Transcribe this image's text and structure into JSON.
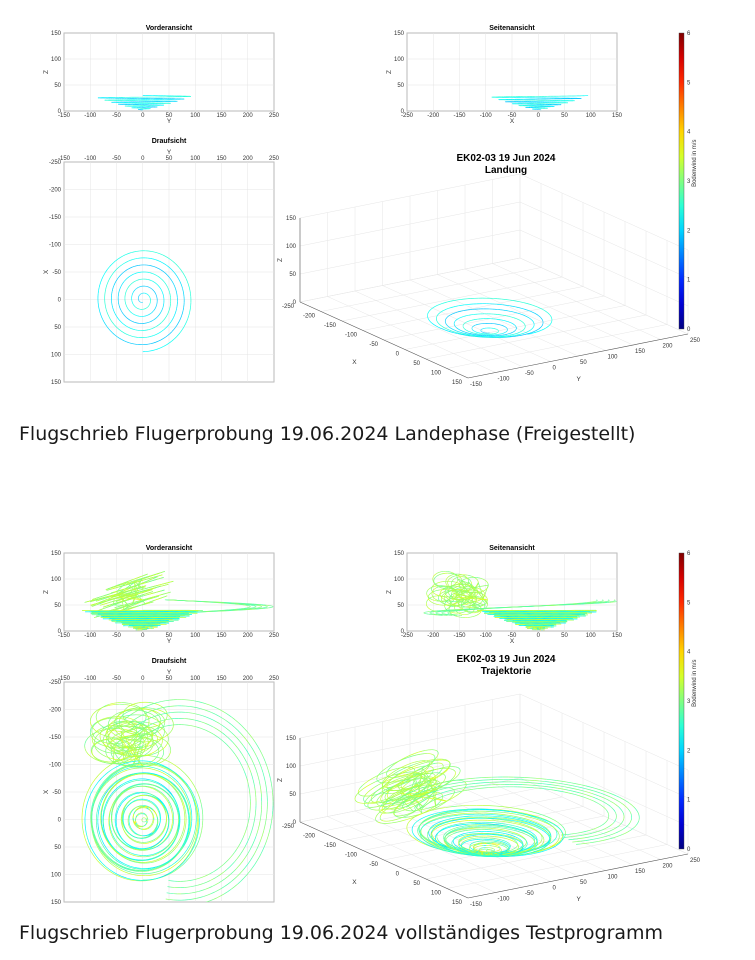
{
  "figures": [
    {
      "id": "landing",
      "caption": "Flugschrieb Flugerprobung 19.06.2024 Landephase (Freigestellt)",
      "panels": {
        "front_title": "Vorderansicht",
        "side_title": "Seitenansicht",
        "top_title": "Draufsicht",
        "main_title_1": "EK02-03 19 Jun 2024",
        "main_title_2": "Landung"
      },
      "colorbar_label": "Bodenwind in m/s"
    },
    {
      "id": "full",
      "caption": "Flugschrieb Flugerprobung 19.06.2024 vollständiges Testprogramm",
      "panels": {
        "front_title": "Vorderansicht",
        "side_title": "Seitenansicht",
        "top_title": "Draufsicht",
        "main_title_1": "EK02-03 19 Jun 2024",
        "main_title_2": "Trajektorie"
      },
      "colorbar_label": "Bodenwind in m/s"
    }
  ],
  "chart_data": [
    {
      "type": "line",
      "subtype": "3d-trajectory-with-projections",
      "title": "EK02-03 19 Jun 2024",
      "subtitle": "Landung",
      "front_view": {
        "xlabel": "Y",
        "ylabel": "Z",
        "xlim": [
          -150,
          250
        ],
        "ylim": [
          0,
          150
        ],
        "xticks": [
          -150,
          -100,
          -50,
          0,
          50,
          100,
          150,
          200,
          250
        ],
        "yticks": [
          0,
          50,
          100,
          150
        ]
      },
      "side_view": {
        "xlabel": "X",
        "ylabel": "Z",
        "xlim": [
          -250,
          150
        ],
        "ylim": [
          0,
          150
        ],
        "xticks": [
          -250,
          -200,
          -150,
          -100,
          -50,
          0,
          50,
          100,
          150
        ],
        "yticks": [
          0,
          50,
          100,
          150
        ]
      },
      "top_view": {
        "xlabel": "Y",
        "ylabel": "X",
        "xlim": [
          -150,
          250
        ],
        "ylim": [
          -250,
          150
        ],
        "xticks": [
          -150,
          -100,
          -50,
          0,
          50,
          100,
          150,
          200,
          250
        ],
        "yticks": [
          -250,
          -200,
          -150,
          -100,
          -50,
          0,
          50,
          100,
          150
        ]
      },
      "view_3d": {
        "xlabel": "X",
        "ylabel": "Y",
        "zlabel": "Z",
        "xticks": [
          -250,
          -200,
          -150,
          -100,
          -50,
          0,
          50,
          100,
          150
        ],
        "yticks": [
          -150,
          -100,
          -50,
          0,
          50,
          100,
          150,
          200,
          250
        ],
        "zticks": [
          0,
          50,
          100,
          150
        ]
      },
      "colorbar": {
        "label": "Bodenwind in m/s",
        "range": [
          0,
          6
        ],
        "ticks": [
          0,
          1,
          2,
          3,
          4,
          5,
          6
        ],
        "colormap": "jet"
      },
      "trajectory": {
        "shape": "descending spiral",
        "center": {
          "x": 0,
          "y": 0
        },
        "start": {
          "z": 30,
          "radius": 95
        },
        "end": {
          "z": 2,
          "radius": 5
        },
        "turns": 7,
        "wind_range": [
          1.9,
          2.5
        ]
      },
      "grid": true
    },
    {
      "type": "line",
      "subtype": "3d-trajectory-with-projections",
      "title": "EK02-03 19 Jun 2024",
      "subtitle": "Trajektorie",
      "front_view": {
        "xlabel": "Y",
        "ylabel": "Z",
        "xlim": [
          -150,
          250
        ],
        "ylim": [
          0,
          150
        ],
        "xticks": [
          -150,
          -100,
          -50,
          0,
          50,
          100,
          150,
          200,
          250
        ],
        "yticks": [
          0,
          50,
          100,
          150
        ]
      },
      "side_view": {
        "xlabel": "X",
        "ylabel": "Z",
        "xlim": [
          -250,
          150
        ],
        "ylim": [
          0,
          150
        ],
        "xticks": [
          -250,
          -200,
          -150,
          -100,
          -50,
          0,
          50,
          100,
          150
        ],
        "yticks": [
          0,
          50,
          100,
          150
        ]
      },
      "top_view": {
        "xlabel": "Y",
        "ylabel": "X",
        "xlim": [
          -150,
          250
        ],
        "ylim": [
          -250,
          150
        ],
        "xticks": [
          -150,
          -100,
          -50,
          0,
          50,
          100,
          150,
          200,
          250
        ],
        "yticks": [
          -250,
          -200,
          -150,
          -100,
          -50,
          0,
          50,
          100,
          150
        ]
      },
      "view_3d": {
        "xlabel": "X",
        "ylabel": "Y",
        "zlabel": "Z",
        "xticks": [
          -250,
          -200,
          -150,
          -100,
          -50,
          0,
          50,
          100,
          150
        ],
        "yticks": [
          -150,
          -100,
          -50,
          0,
          50,
          100,
          150,
          200,
          250
        ],
        "zticks": [
          0,
          50,
          100,
          150
        ]
      },
      "colorbar": {
        "label": "Bodenwind in m/s",
        "range": [
          0,
          6
        ],
        "ticks": [
          0,
          1,
          2,
          3,
          4,
          5,
          6
        ],
        "colormap": "jet"
      },
      "trajectory": {
        "segments": [
          {
            "shape": "loiter circles drifting",
            "x_range": [
              -230,
              -100
            ],
            "y_range": [
              -110,
              80
            ],
            "z_range": [
              40,
              100
            ],
            "radius": 55,
            "wind_range": [
              2.8,
              3.6
            ]
          },
          {
            "shape": "wide return arc",
            "x_range": [
              -200,
              120
            ],
            "y_range": [
              0,
              210
            ],
            "z_range": [
              30,
              65
            ],
            "wind_range": [
              2.6,
              3.2
            ]
          },
          {
            "shape": "descending spiral",
            "center": {
              "x": 0,
              "y": 0
            },
            "z_range": [
              2,
              40
            ],
            "radius_range": [
              5,
              110
            ],
            "wind_range": [
              1.8,
              4.2
            ]
          }
        ]
      },
      "grid": true
    }
  ]
}
